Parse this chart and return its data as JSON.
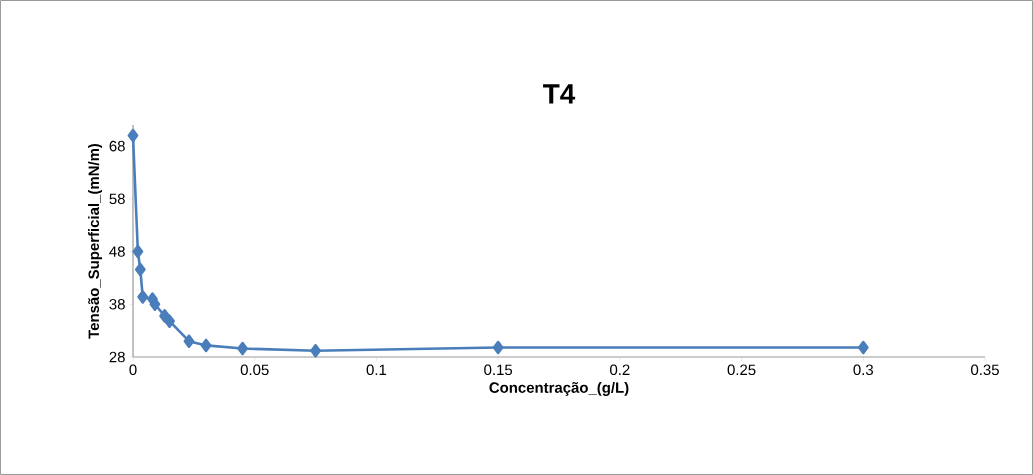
{
  "chart_data": {
    "type": "line",
    "title": "T4",
    "xlabel": "Concentração_(g/L)",
    "ylabel": "Tensão_Superficial_(mN/m)",
    "x": [
      0,
      0.002,
      0.003,
      0.004,
      0.008,
      0.009,
      0.013,
      0.015,
      0.023,
      0.03,
      0.045,
      0.075,
      0.15,
      0.3
    ],
    "series": [
      {
        "color": "#4a7ebb",
        "values": [
          70,
          48,
          44.6,
          39.4,
          39,
          38,
          35.8,
          34.8,
          31,
          30.2,
          29.6,
          29.2,
          29.8,
          29.8
        ]
      }
    ],
    "xlim": [
      0,
      0.35
    ],
    "ylim": [
      28,
      72
    ],
    "xticks": [
      0,
      0.05,
      0.1,
      0.15,
      0.2,
      0.25,
      0.3,
      0.35
    ],
    "yticks": [
      28,
      38,
      48,
      58,
      68
    ],
    "marker": "diamond",
    "line_style": "solid"
  }
}
